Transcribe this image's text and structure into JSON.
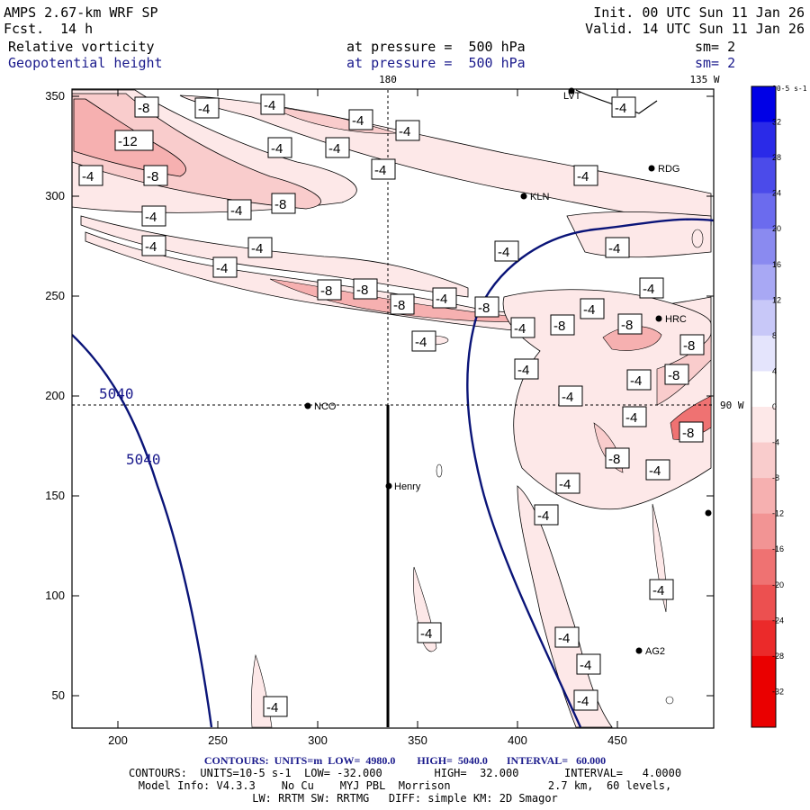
{
  "header": {
    "model": "AMPS 2.67-km WRF SP",
    "fcst_label": "Fcst.",
    "fcst_value": "14 h",
    "init": "Init. 00 UTC Sun 11 Jan 26",
    "valid": "Valid. 14 UTC Sun 11 Jan 26",
    "field1": "Relative vorticity",
    "field2": "Geopotential height",
    "pressure1": "at pressure =  500 hPa",
    "pressure2": "at pressure =  500 hPa",
    "sm1": "sm= 2",
    "sm2": "sm= 2"
  },
  "map": {
    "lon_top_180": "180",
    "lon_top_135": "135 W",
    "lon_right_90": "90 W",
    "x_ticks": [
      "200",
      "250",
      "300",
      "350",
      "400",
      "450"
    ],
    "y_ticks": [
      "350",
      "300",
      "250",
      "200",
      "150",
      "100",
      "50"
    ],
    "stations": [
      "LVT",
      "RDG",
      "KLN",
      "HRC",
      "NCO",
      "Henry",
      "AG2"
    ],
    "height_contour_labels": [
      "5040",
      "5040"
    ],
    "vorticity_labels": {
      "m4": "-4",
      "m8": "-8",
      "m12": "-12"
    }
  },
  "colorbar": {
    "unit": "10-5 s-1",
    "labels": [
      "32",
      "28",
      "24",
      "20",
      "16",
      "12",
      "8",
      "4",
      "0",
      "-4",
      "-8",
      "-12",
      "-16",
      "-20",
      "-24",
      "-28",
      "-32"
    ],
    "colors": [
      "#0000e6",
      "#2a2ae8",
      "#4b4bea",
      "#6b6bee",
      "#8a8af0",
      "#a8a8f4",
      "#c8c8f8",
      "#e4e4fc",
      "#ffffff",
      "#fde8e8",
      "#f9cccc",
      "#f6b0b0",
      "#f29494",
      "#ef7272",
      "#ec5050",
      "#eb2a2a",
      "#ea0000"
    ]
  },
  "footer": {
    "line1": "CONTOURS:  UNITS=m  LOW=  4980.0        HIGH=  5040.0       INTERVAL=   60.000",
    "line2": "CONTOURS:  UNITS=10-5 s-1  LOW= -32.000        HIGH=  32.000       INTERVAL=   4.0000",
    "line3": "Model Info: V4.3.3    No Cu    MYJ PBL  Morrison               2.7 km,  60 levels,",
    "line4": "LW: RRTM SW: RRTMG   DIFF: simple KM: 2D Smagor"
  }
}
